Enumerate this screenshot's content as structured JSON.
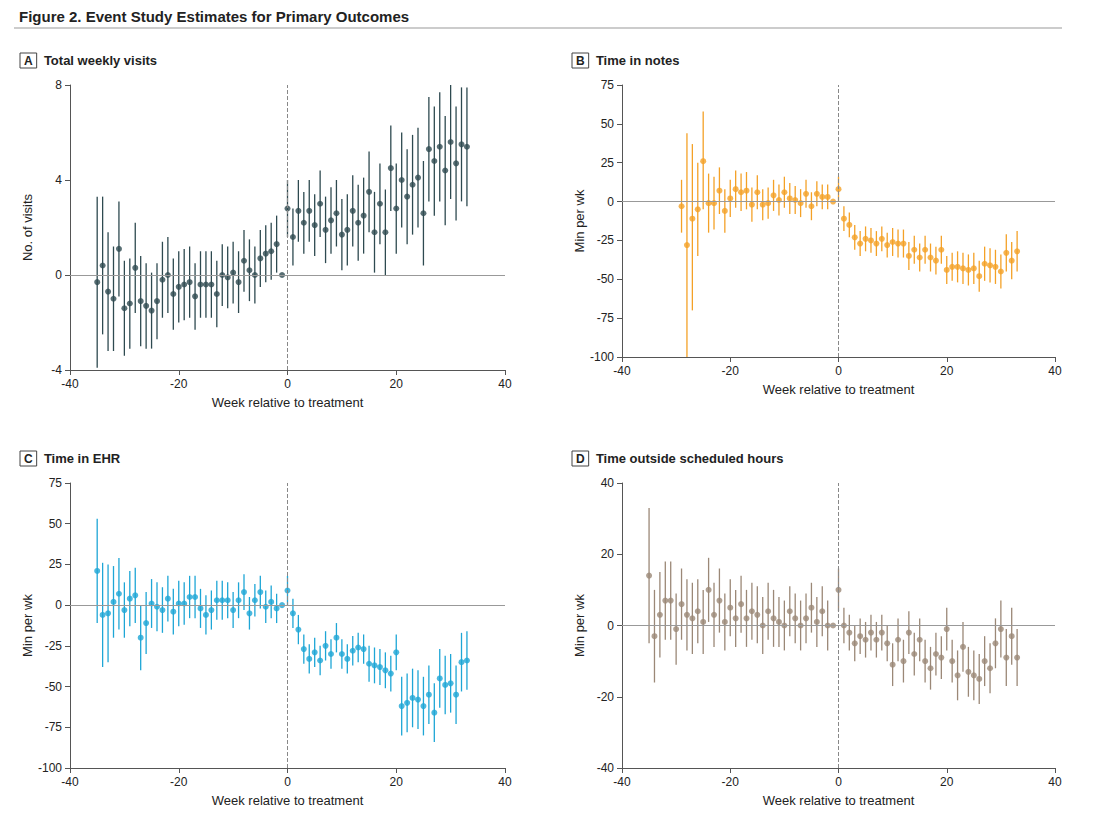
{
  "title": "Figure 2. Event Study Estimates for Primary Outcomes",
  "chart_data": [
    {
      "panel": "A",
      "title": "Total weekly visits",
      "type": "scatter",
      "marker": "circle",
      "color": "#2e4a50",
      "grid": false,
      "xlabel": "Week relative to treatment",
      "ylabel": "No. of visits",
      "xlim": [
        -40,
        40
      ],
      "xticks": [
        -40,
        -20,
        0,
        20,
        40
      ],
      "ylim": [
        -4,
        8
      ],
      "yticks": [
        -4,
        0,
        4,
        8
      ],
      "vline": 0,
      "hline": 0,
      "x": [
        -35,
        -34,
        -33,
        -32,
        -31,
        -30,
        -29,
        -28,
        -27,
        -26,
        -25,
        -24,
        -23,
        -22,
        -21,
        -20,
        -19,
        -18,
        -17,
        -16,
        -15,
        -14,
        -13,
        -12,
        -11,
        -10,
        -9,
        -8,
        -7,
        -6,
        -5,
        -4,
        -3,
        -2,
        -1,
        0,
        1,
        2,
        3,
        4,
        5,
        6,
        7,
        8,
        9,
        10,
        11,
        12,
        13,
        14,
        15,
        16,
        17,
        18,
        19,
        20,
        21,
        22,
        23,
        24,
        25,
        26,
        27,
        28,
        29,
        30,
        31,
        32,
        33
      ],
      "values": [
        -0.3,
        0.4,
        -0.7,
        -1.0,
        1.1,
        -1.4,
        -1.2,
        0.3,
        -1.1,
        -1.3,
        -1.5,
        -1.1,
        -0.2,
        0.0,
        -0.8,
        -0.5,
        -0.4,
        -0.3,
        -0.9,
        -0.4,
        -0.4,
        -0.4,
        -0.8,
        0.0,
        -0.1,
        0.1,
        -0.3,
        0.6,
        0.2,
        0.0,
        0.7,
        0.9,
        1.0,
        1.3,
        0.0,
        2.8,
        1.6,
        2.7,
        2.2,
        2.7,
        2.1,
        3.0,
        1.9,
        2.3,
        2.6,
        1.7,
        1.9,
        2.7,
        2.2,
        2.5,
        3.5,
        1.8,
        3.0,
        1.8,
        4.5,
        2.8,
        4.0,
        3.3,
        3.8,
        4.1,
        2.6,
        5.3,
        4.8,
        5.4,
        4.4,
        5.6,
        4.7,
        5.5,
        5.4
      ],
      "ci_low": [
        -3.9,
        -2.5,
        -3.2,
        -3.2,
        -0.9,
        -3.4,
        -3.1,
        -1.6,
        -3.0,
        -3.1,
        -3.1,
        -2.7,
        -1.8,
        -1.6,
        -2.3,
        -2.0,
        -1.9,
        -1.8,
        -2.3,
        -1.8,
        -1.8,
        -1.8,
        -2.2,
        -1.3,
        -1.4,
        -1.2,
        -1.6,
        -0.7,
        -1.1,
        -1.2,
        -0.5,
        -0.3,
        -0.2,
        0.1,
        null,
        1.6,
        0.4,
        1.4,
        0.9,
        1.4,
        0.8,
        1.6,
        0.5,
        0.9,
        1.2,
        0.2,
        0.4,
        1.2,
        0.6,
        0.9,
        1.8,
        0.1,
        1.3,
        0.0,
        2.7,
        0.9,
        2.0,
        1.3,
        1.7,
        2.0,
        0.4,
        3.1,
        2.5,
        3.1,
        2.1,
        3.2,
        2.3,
        3.1,
        2.9
      ],
      "ci_high": [
        3.3,
        3.3,
        1.8,
        1.2,
        3.1,
        0.6,
        0.7,
        2.2,
        0.8,
        0.5,
        0.1,
        0.5,
        1.4,
        1.6,
        0.7,
        1.0,
        1.1,
        1.2,
        0.5,
        1.0,
        1.0,
        1.0,
        0.6,
        1.3,
        1.2,
        1.4,
        1.0,
        1.9,
        1.5,
        1.2,
        1.9,
        2.1,
        2.2,
        2.5,
        null,
        4.0,
        2.8,
        4.0,
        3.5,
        4.0,
        3.4,
        4.4,
        3.3,
        3.7,
        4.0,
        3.2,
        3.4,
        4.2,
        3.8,
        4.1,
        5.2,
        3.5,
        4.7,
        3.6,
        6.3,
        4.7,
        6.0,
        5.3,
        5.9,
        6.2,
        4.8,
        7.5,
        7.1,
        7.7,
        6.7,
        8.0,
        7.1,
        7.9,
        7.9
      ]
    },
    {
      "panel": "B",
      "title": "Time in notes",
      "type": "scatter",
      "marker": "circle",
      "color": "#f4a127",
      "grid": false,
      "xlabel": "Week relative to treatment",
      "ylabel": "Min per wk",
      "xlim": [
        -40,
        40
      ],
      "xticks": [
        -40,
        -20,
        0,
        20,
        40
      ],
      "ylim": [
        -100,
        75
      ],
      "yticks": [
        -100,
        -75,
        -50,
        -25,
        0,
        25,
        50,
        75
      ],
      "vline": 0,
      "hline": 0,
      "x": [
        -29,
        -28,
        -27,
        -26,
        -25,
        -24,
        -23,
        -22,
        -21,
        -20,
        -19,
        -18,
        -17,
        -16,
        -15,
        -14,
        -13,
        -12,
        -11,
        -10,
        -9,
        -8,
        -7,
        -6,
        -5,
        -4,
        -3,
        -2,
        -1,
        0,
        1,
        2,
        3,
        4,
        5,
        6,
        7,
        8,
        9,
        10,
        11,
        12,
        13,
        14,
        15,
        16,
        17,
        18,
        19,
        20,
        21,
        22,
        23,
        24,
        25,
        26,
        27,
        28,
        29,
        30,
        31,
        32,
        33
      ],
      "values": [
        -3,
        -28,
        -11,
        -5,
        26,
        -1,
        -1,
        7,
        -6,
        2,
        8,
        6,
        7,
        -2,
        6,
        -2,
        -1,
        4,
        1,
        6,
        2,
        1,
        -1,
        5,
        -3,
        5,
        3,
        3,
        0,
        8,
        -11,
        -15,
        -23,
        -27,
        -24,
        -25,
        -27,
        -24,
        -28,
        -26,
        -27,
        -27,
        -35,
        -31,
        -36,
        -31,
        -36,
        -38,
        -31,
        -44,
        -42,
        -42,
        -43,
        -44,
        -43,
        -48,
        -40,
        -41,
        -42,
        -45,
        -33,
        -38,
        -32
      ],
      "ci_low": [
        -20,
        -100,
        -70,
        -35,
        -5,
        -20,
        -18,
        -8,
        -20,
        -10,
        -4,
        -6,
        -5,
        -13,
        -5,
        -12,
        -11,
        -6,
        -9,
        -4,
        -8,
        -8,
        -10,
        -4,
        -12,
        -3,
        -5,
        -5,
        null,
        0,
        -19,
        -23,
        -31,
        -35,
        -32,
        -33,
        -35,
        -32,
        -36,
        -35,
        -36,
        -36,
        -44,
        -40,
        -45,
        -40,
        -45,
        -47,
        -40,
        -53,
        -51,
        -52,
        -53,
        -54,
        -53,
        -58,
        -51,
        -52,
        -53,
        -56,
        -45,
        -50,
        -45
      ],
      "ci_high": [
        14,
        44,
        37,
        25,
        58,
        18,
        16,
        22,
        8,
        14,
        20,
        18,
        19,
        9,
        17,
        8,
        9,
        14,
        11,
        16,
        12,
        10,
        8,
        14,
        6,
        13,
        11,
        11,
        null,
        16,
        -3,
        -7,
        -15,
        -19,
        -16,
        -17,
        -19,
        -16,
        -20,
        -17,
        -18,
        -18,
        -26,
        -22,
        -27,
        -22,
        -27,
        -29,
        -22,
        -35,
        -33,
        -32,
        -33,
        -34,
        -33,
        -38,
        -29,
        -30,
        -31,
        -34,
        -21,
        -26,
        -19
      ]
    },
    {
      "panel": "C",
      "title": "Time in EHR",
      "type": "scatter",
      "marker": "circle",
      "color": "#1ea6d6",
      "grid": false,
      "xlabel": "Week relative to treatment",
      "ylabel": "Min per wk",
      "xlim": [
        -40,
        40
      ],
      "xticks": [
        -40,
        -20,
        0,
        20,
        40
      ],
      "ylim": [
        -100,
        75
      ],
      "yticks": [
        -100,
        -75,
        -50,
        -25,
        0,
        25,
        50,
        75
      ],
      "vline": 0,
      "hline": 0,
      "x": [
        -35,
        -34,
        -33,
        -32,
        -31,
        -30,
        -29,
        -28,
        -27,
        -26,
        -25,
        -24,
        -23,
        -22,
        -21,
        -20,
        -19,
        -18,
        -17,
        -16,
        -15,
        -14,
        -13,
        -12,
        -11,
        -10,
        -9,
        -8,
        -7,
        -6,
        -5,
        -4,
        -3,
        -2,
        -1,
        0,
        1,
        2,
        3,
        4,
        5,
        6,
        7,
        8,
        9,
        10,
        11,
        12,
        13,
        14,
        15,
        16,
        17,
        18,
        19,
        20,
        21,
        22,
        23,
        24,
        25,
        26,
        27,
        28,
        29,
        30,
        31,
        32,
        33
      ],
      "values": [
        21,
        -6,
        -5,
        2,
        7,
        -3,
        4,
        6,
        -20,
        -11,
        1,
        -1,
        -3,
        4,
        -4,
        1,
        1,
        5,
        5,
        -2,
        -6,
        -3,
        3,
        3,
        3,
        -3,
        3,
        8,
        -5,
        3,
        8,
        -1,
        2,
        -2,
        0,
        9,
        -5,
        -15,
        -27,
        -33,
        -29,
        -34,
        -25,
        -30,
        -20,
        -30,
        -33,
        -28,
        -26,
        -27,
        -36,
        -37,
        -38,
        -40,
        -42,
        -29,
        -62,
        -60,
        -57,
        -58,
        -62,
        -55,
        -66,
        -45,
        -49,
        -48,
        -55,
        -35,
        -34
      ],
      "ci_low": [
        -11,
        -38,
        -35,
        -20,
        -15,
        -20,
        -13,
        -11,
        -40,
        -30,
        -14,
        -16,
        -17,
        -10,
        -18,
        -13,
        -12,
        -8,
        -8,
        -14,
        -18,
        -15,
        -9,
        -9,
        -8,
        -14,
        -8,
        -3,
        -15,
        -7,
        -2,
        -11,
        -8,
        -11,
        null,
        0,
        -14,
        -24,
        -36,
        -42,
        -38,
        -43,
        -34,
        -39,
        -29,
        -39,
        -42,
        -37,
        -35,
        -36,
        -47,
        -48,
        -49,
        -51,
        -53,
        -40,
        -80,
        -78,
        -75,
        -76,
        -80,
        -73,
        -84,
        -63,
        -67,
        -66,
        -73,
        -53,
        -52
      ],
      "ci_high": [
        53,
        26,
        25,
        24,
        29,
        14,
        21,
        23,
        0,
        8,
        16,
        14,
        11,
        18,
        10,
        15,
        14,
        18,
        18,
        10,
        6,
        9,
        15,
        15,
        14,
        8,
        14,
        19,
        5,
        13,
        18,
        9,
        12,
        7,
        null,
        18,
        4,
        -6,
        -18,
        -24,
        -20,
        -25,
        -16,
        -21,
        -11,
        -21,
        -24,
        -19,
        -17,
        -18,
        -25,
        -26,
        -27,
        -29,
        -31,
        -18,
        -44,
        -42,
        -39,
        -40,
        -44,
        -37,
        -48,
        -27,
        -31,
        -30,
        -37,
        -17,
        -16
      ]
    },
    {
      "panel": "D",
      "title": "Time outside scheduled hours",
      "type": "scatter",
      "marker": "circle",
      "color": "#9b8877",
      "grid": false,
      "xlabel": "Week relative to treatment",
      "ylabel": "Min per wk",
      "xlim": [
        -40,
        40
      ],
      "xticks": [
        -40,
        -20,
        0,
        20,
        40
      ],
      "ylim": [
        -40,
        40
      ],
      "yticks": [
        -40,
        -20,
        0,
        20,
        40
      ],
      "vline": 0,
      "hline": 0,
      "x": [
        -35,
        -34,
        -33,
        -32,
        -31,
        -30,
        -29,
        -28,
        -27,
        -26,
        -25,
        -24,
        -23,
        -22,
        -21,
        -20,
        -19,
        -18,
        -17,
        -16,
        -15,
        -14,
        -13,
        -12,
        -11,
        -10,
        -9,
        -8,
        -7,
        -6,
        -5,
        -4,
        -3,
        -2,
        -1,
        0,
        1,
        2,
        3,
        4,
        5,
        6,
        7,
        8,
        9,
        10,
        11,
        12,
        13,
        14,
        15,
        16,
        17,
        18,
        19,
        20,
        21,
        22,
        23,
        24,
        25,
        26,
        27,
        28,
        29,
        30,
        31,
        32,
        33
      ],
      "values": [
        14,
        -3,
        3,
        7,
        7,
        -1,
        6,
        3,
        2,
        4,
        1,
        10,
        3,
        7,
        1,
        5,
        2,
        6,
        2,
        4,
        3,
        0,
        4,
        2,
        1,
        0,
        4,
        2,
        0,
        2,
        5,
        1,
        4,
        0,
        0,
        10,
        0,
        -2,
        -5,
        -3,
        -4,
        -2,
        -4,
        -2,
        -5,
        -11,
        -4,
        -10,
        -2,
        -8,
        -4,
        -10,
        -12,
        -8,
        -9,
        -1,
        -10,
        -14,
        -6,
        -13,
        -14,
        -15,
        -10,
        -12,
        -5,
        -1,
        -9,
        -3,
        -9
      ],
      "ci_low": [
        -5,
        -16,
        -9,
        -4,
        -4,
        -11,
        -4,
        -7,
        -8,
        -5,
        -8,
        1,
        -6,
        -2,
        -7,
        -3,
        -6,
        -2,
        -6,
        -4,
        -5,
        -8,
        -4,
        -6,
        -6,
        -7,
        -3,
        -5,
        -7,
        -5,
        -2,
        -6,
        -3,
        -7,
        null,
        4,
        -5,
        -7,
        -10,
        -8,
        -9,
        -7,
        -9,
        -7,
        -10,
        -17,
        -10,
        -16,
        -8,
        -14,
        -10,
        -16,
        -18,
        -14,
        -15,
        -7,
        -16,
        -21,
        -13,
        -20,
        -21,
        -22,
        -17,
        -19,
        -12,
        -9,
        -17,
        -11,
        -17
      ],
      "ci_high": [
        33,
        10,
        15,
        18,
        18,
        9,
        16,
        13,
        12,
        13,
        10,
        19,
        12,
        16,
        9,
        13,
        10,
        14,
        10,
        12,
        11,
        8,
        12,
        10,
        8,
        7,
        11,
        9,
        7,
        9,
        12,
        8,
        11,
        7,
        null,
        16,
        5,
        3,
        0,
        2,
        1,
        3,
        1,
        3,
        0,
        -5,
        2,
        -4,
        4,
        -2,
        2,
        -4,
        -6,
        -2,
        -3,
        5,
        -4,
        -7,
        1,
        -6,
        -7,
        -8,
        -3,
        -5,
        2,
        7,
        -1,
        5,
        -1
      ]
    }
  ]
}
